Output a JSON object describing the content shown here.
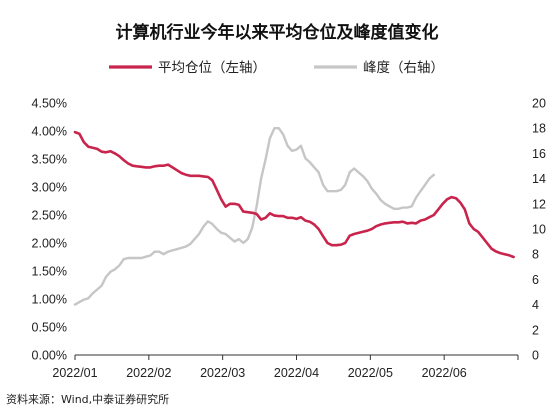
{
  "chart_data": {
    "type": "line",
    "title": "计算机行业今年以来平均仓位及峰度值变化",
    "source": "资料来源：Wind,中泰证券研究所",
    "x_ticks": [
      "2022/01",
      "2022/02",
      "2022/03",
      "2022/04",
      "2022/05",
      "2022/06"
    ],
    "y_left": {
      "lim": [
        0,
        4.5
      ],
      "ticks": [
        "0.00%",
        "0.50%",
        "1.00%",
        "1.50%",
        "2.00%",
        "2.50%",
        "3.00%",
        "3.50%",
        "4.00%",
        "4.50%"
      ]
    },
    "y_right": {
      "lim": [
        0,
        20
      ],
      "ticks": [
        "0",
        "2",
        "4",
        "6",
        "8",
        "10",
        "12",
        "14",
        "16",
        "18",
        "20"
      ]
    },
    "x_range": [
      0,
      100
    ],
    "grid": false,
    "legend_position": "top",
    "series": [
      {
        "name": "平均仓位（左轴）",
        "axis": "left",
        "color": "#c8244c",
        "points": [
          [
            0,
            3.98
          ],
          [
            1,
            3.95
          ],
          [
            2,
            3.8
          ],
          [
            3,
            3.72
          ],
          [
            4,
            3.7
          ],
          [
            5,
            3.68
          ],
          [
            6,
            3.63
          ],
          [
            7,
            3.62
          ],
          [
            8,
            3.64
          ],
          [
            9,
            3.6
          ],
          [
            10,
            3.55
          ],
          [
            11,
            3.48
          ],
          [
            12,
            3.42
          ],
          [
            13,
            3.38
          ],
          [
            14,
            3.37
          ],
          [
            15,
            3.36
          ],
          [
            16,
            3.35
          ],
          [
            17,
            3.35
          ],
          [
            18,
            3.37
          ],
          [
            19,
            3.38
          ],
          [
            20,
            3.38
          ],
          [
            21,
            3.4
          ],
          [
            22,
            3.35
          ],
          [
            23,
            3.3
          ],
          [
            24,
            3.25
          ],
          [
            25,
            3.22
          ],
          [
            26,
            3.2
          ],
          [
            27,
            3.2
          ],
          [
            28,
            3.2
          ],
          [
            29,
            3.19
          ],
          [
            30,
            3.18
          ],
          [
            31,
            3.12
          ],
          [
            32,
            2.95
          ],
          [
            33,
            2.78
          ],
          [
            34,
            2.65
          ],
          [
            35,
            2.7
          ],
          [
            36,
            2.7
          ],
          [
            37,
            2.68
          ],
          [
            38,
            2.56
          ],
          [
            39,
            2.55
          ],
          [
            40,
            2.54
          ],
          [
            41,
            2.52
          ],
          [
            42,
            2.42
          ],
          [
            43,
            2.45
          ],
          [
            44,
            2.53
          ],
          [
            45,
            2.49
          ],
          [
            46,
            2.48
          ],
          [
            47,
            2.48
          ],
          [
            48,
            2.45
          ],
          [
            49,
            2.45
          ],
          [
            50,
            2.43
          ],
          [
            51,
            2.46
          ],
          [
            52,
            2.4
          ],
          [
            53,
            2.38
          ],
          [
            54,
            2.33
          ],
          [
            55,
            2.25
          ],
          [
            56,
            2.12
          ],
          [
            57,
            2.0
          ],
          [
            58,
            1.96
          ],
          [
            59,
            1.96
          ],
          [
            60,
            1.97
          ],
          [
            61,
            2.0
          ],
          [
            62,
            2.13
          ],
          [
            63,
            2.16
          ],
          [
            64,
            2.18
          ],
          [
            65,
            2.2
          ],
          [
            66,
            2.22
          ],
          [
            67,
            2.25
          ],
          [
            68,
            2.3
          ],
          [
            69,
            2.33
          ],
          [
            70,
            2.35
          ],
          [
            71,
            2.36
          ],
          [
            72,
            2.37
          ],
          [
            73,
            2.37
          ],
          [
            74,
            2.38
          ],
          [
            75,
            2.35
          ],
          [
            76,
            2.36
          ],
          [
            77,
            2.35
          ],
          [
            78,
            2.4
          ],
          [
            79,
            2.42
          ],
          [
            80,
            2.46
          ],
          [
            81,
            2.5
          ],
          [
            82,
            2.6
          ],
          [
            83,
            2.7
          ],
          [
            84,
            2.78
          ],
          [
            85,
            2.82
          ],
          [
            86,
            2.8
          ],
          [
            87,
            2.72
          ],
          [
            88,
            2.6
          ],
          [
            89,
            2.35
          ],
          [
            90,
            2.25
          ],
          [
            91,
            2.2
          ],
          [
            92,
            2.1
          ],
          [
            93,
            2.0
          ],
          [
            94,
            1.9
          ],
          [
            95,
            1.85
          ],
          [
            96,
            1.82
          ],
          [
            97,
            1.8
          ],
          [
            98,
            1.78
          ],
          [
            99,
            1.75
          ]
        ]
      },
      {
        "name": "峰度（右轴）",
        "axis": "right",
        "color": "#c6c6c6",
        "points": [
          [
            0,
            4.0
          ],
          [
            1,
            4.2
          ],
          [
            2,
            4.4
          ],
          [
            3,
            4.5
          ],
          [
            4,
            4.9
          ],
          [
            5,
            5.2
          ],
          [
            6,
            5.5
          ],
          [
            7,
            6.2
          ],
          [
            8,
            6.6
          ],
          [
            9,
            6.8
          ],
          [
            10,
            7.1
          ],
          [
            11,
            7.6
          ],
          [
            12,
            7.7
          ],
          [
            13,
            7.7
          ],
          [
            14,
            7.7
          ],
          [
            15,
            7.7
          ],
          [
            16,
            7.8
          ],
          [
            17,
            7.9
          ],
          [
            18,
            8.2
          ],
          [
            19,
            8.2
          ],
          [
            20,
            8.0
          ],
          [
            21,
            8.2
          ],
          [
            22,
            8.3
          ],
          [
            23,
            8.4
          ],
          [
            24,
            8.5
          ],
          [
            25,
            8.6
          ],
          [
            26,
            8.8
          ],
          [
            27,
            9.2
          ],
          [
            28,
            9.6
          ],
          [
            29,
            10.2
          ],
          [
            30,
            10.6
          ],
          [
            31,
            10.4
          ],
          [
            32,
            10.0
          ],
          [
            33,
            9.7
          ],
          [
            34,
            9.6
          ],
          [
            35,
            9.3
          ],
          [
            36,
            9.0
          ],
          [
            37,
            9.2
          ],
          [
            38,
            8.9
          ],
          [
            39,
            9.2
          ],
          [
            40,
            10.1
          ],
          [
            41,
            11.8
          ],
          [
            42,
            14.0
          ],
          [
            43,
            15.5
          ],
          [
            44,
            17.2
          ],
          [
            45,
            18.0
          ],
          [
            46,
            18.0
          ],
          [
            47,
            17.5
          ],
          [
            48,
            16.6
          ],
          [
            49,
            16.2
          ],
          [
            50,
            16.3
          ],
          [
            51,
            16.6
          ],
          [
            52,
            15.6
          ],
          [
            53,
            15.3
          ],
          [
            54,
            14.9
          ],
          [
            55,
            14.5
          ],
          [
            56,
            13.5
          ],
          [
            57,
            13.0
          ],
          [
            58,
            13.0
          ],
          [
            59,
            13.0
          ],
          [
            60,
            13.1
          ],
          [
            61,
            13.5
          ],
          [
            62,
            14.5
          ],
          [
            63,
            14.8
          ],
          [
            64,
            14.5
          ],
          [
            65,
            14.2
          ],
          [
            66,
            13.8
          ],
          [
            67,
            13.2
          ],
          [
            68,
            12.8
          ],
          [
            69,
            12.3
          ],
          [
            70,
            12.0
          ],
          [
            71,
            11.8
          ],
          [
            72,
            11.6
          ],
          [
            73,
            11.6
          ],
          [
            74,
            11.7
          ],
          [
            75,
            11.7
          ],
          [
            76,
            11.8
          ],
          [
            77,
            12.5
          ],
          [
            78,
            13.0
          ],
          [
            79,
            13.5
          ],
          [
            80,
            14.0
          ],
          [
            81,
            14.3
          ]
        ]
      }
    ]
  }
}
